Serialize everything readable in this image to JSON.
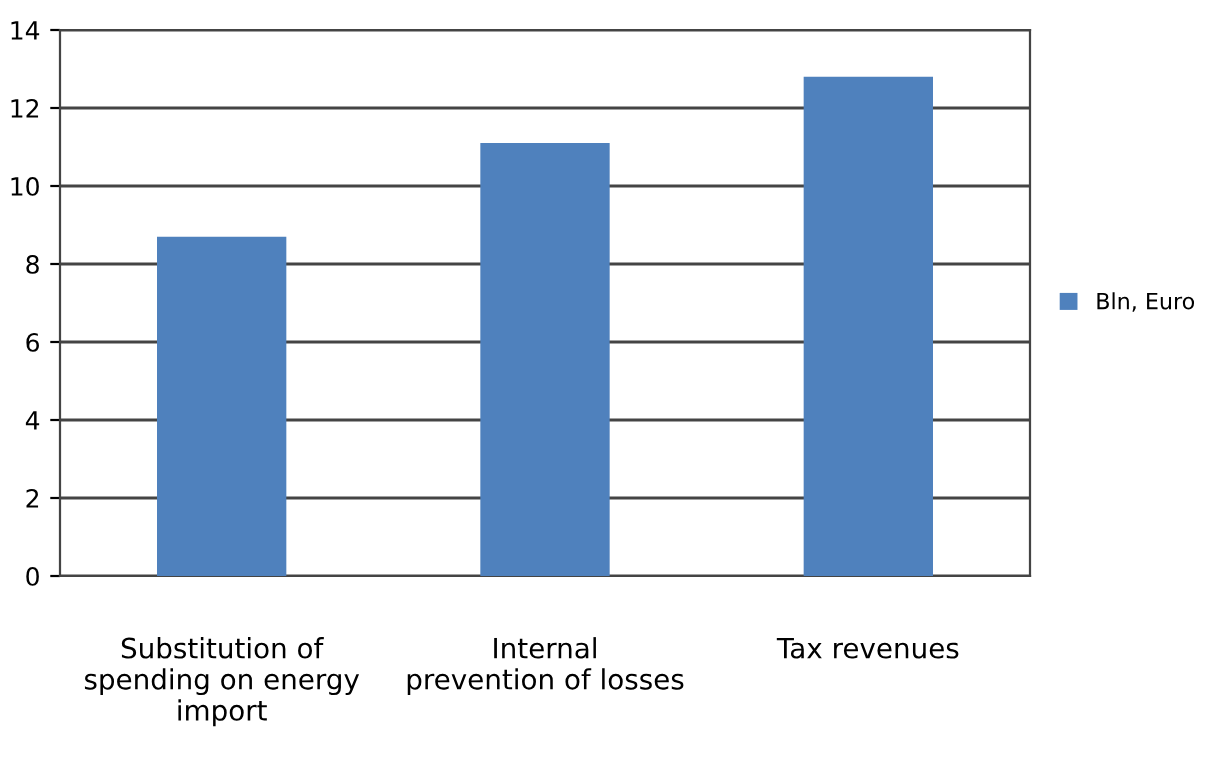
{
  "chart_data": {
    "type": "bar",
    "categories": [
      "Substitution of\nspending on energy\nimport",
      "Internal\nprevention of losses",
      "Tax revenues"
    ],
    "series": [
      {
        "name": "Bln, Euro",
        "color": "#4f81bd",
        "values": [
          8.7,
          11.1,
          12.8
        ]
      }
    ],
    "ylim": [
      0,
      14
    ],
    "yticks": [
      0,
      2,
      4,
      6,
      8,
      10,
      12,
      14
    ],
    "grid": "y",
    "legend": "right"
  }
}
